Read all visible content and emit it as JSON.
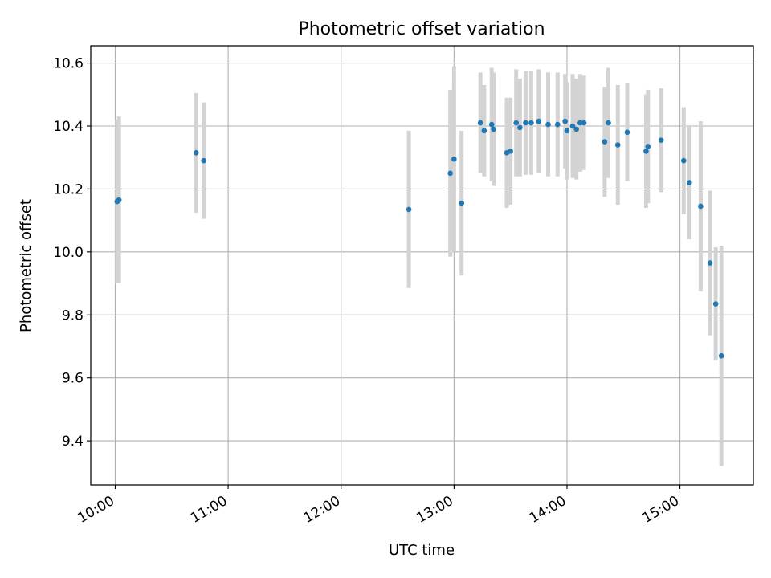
{
  "chart_data": {
    "type": "scatter",
    "title": "Photometric offset variation",
    "xlabel": "UTC time",
    "ylabel": "Photometric offset",
    "xlim": [
      "09:47",
      "15:39"
    ],
    "ylim": [
      9.26,
      10.655
    ],
    "xticks": [
      "10:00",
      "11:00",
      "12:00",
      "13:00",
      "14:00",
      "15:00"
    ],
    "yticks": [
      9.4,
      9.6,
      9.8,
      10.0,
      10.2,
      10.4,
      10.6
    ],
    "ytick_labels": [
      "9.4",
      "9.6",
      "9.8",
      "10.0",
      "10.2",
      "10.4",
      "10.6"
    ],
    "grid": true,
    "colors": {
      "points": "#1f77b4",
      "errorbars": "#d3d3d3",
      "grid": "#b0b0b0"
    },
    "points": [
      {
        "x": "10:01",
        "y": 10.16,
        "err": 0.26
      },
      {
        "x": "10:02",
        "y": 10.165,
        "err": 0.265
      },
      {
        "x": "10:43",
        "y": 10.315,
        "err": 0.19
      },
      {
        "x": "10:47",
        "y": 10.29,
        "err": 0.185
      },
      {
        "x": "12:36",
        "y": 10.135,
        "err": 0.25
      },
      {
        "x": "12:58",
        "y": 10.25,
        "err": 0.265
      },
      {
        "x": "13:00",
        "y": 10.295,
        "err": 0.295
      },
      {
        "x": "13:04",
        "y": 10.155,
        "err": 0.23
      },
      {
        "x": "13:14",
        "y": 10.41,
        "err": 0.16
      },
      {
        "x": "13:16",
        "y": 10.385,
        "err": 0.145
      },
      {
        "x": "13:20",
        "y": 10.405,
        "err": 0.18
      },
      {
        "x": "13:21",
        "y": 10.39,
        "err": 0.18
      },
      {
        "x": "13:28",
        "y": 10.315,
        "err": 0.175
      },
      {
        "x": "13:30",
        "y": 10.32,
        "err": 0.17
      },
      {
        "x": "13:33",
        "y": 10.41,
        "err": 0.17
      },
      {
        "x": "13:35",
        "y": 10.395,
        "err": 0.155
      },
      {
        "x": "13:38",
        "y": 10.41,
        "err": 0.165
      },
      {
        "x": "13:41",
        "y": 10.41,
        "err": 0.165
      },
      {
        "x": "13:45",
        "y": 10.415,
        "err": 0.165
      },
      {
        "x": "13:50",
        "y": 10.405,
        "err": 0.165
      },
      {
        "x": "13:55",
        "y": 10.405,
        "err": 0.165
      },
      {
        "x": "13:59",
        "y": 10.415,
        "err": 0.15
      },
      {
        "x": "14:00",
        "y": 10.385,
        "err": 0.155
      },
      {
        "x": "14:03",
        "y": 10.4,
        "err": 0.165
      },
      {
        "x": "14:05",
        "y": 10.39,
        "err": 0.16
      },
      {
        "x": "14:07",
        "y": 10.41,
        "err": 0.155
      },
      {
        "x": "14:09",
        "y": 10.41,
        "err": 0.15
      },
      {
        "x": "14:20",
        "y": 10.35,
        "err": 0.175
      },
      {
        "x": "14:22",
        "y": 10.41,
        "err": 0.175
      },
      {
        "x": "14:27",
        "y": 10.34,
        "err": 0.19
      },
      {
        "x": "14:32",
        "y": 10.38,
        "err": 0.155
      },
      {
        "x": "14:42",
        "y": 10.32,
        "err": 0.18
      },
      {
        "x": "14:43",
        "y": 10.335,
        "err": 0.18
      },
      {
        "x": "14:50",
        "y": 10.355,
        "err": 0.165
      },
      {
        "x": "15:02",
        "y": 10.29,
        "err": 0.17
      },
      {
        "x": "15:05",
        "y": 10.22,
        "err": 0.18
      },
      {
        "x": "15:11",
        "y": 10.145,
        "err": 0.27
      },
      {
        "x": "15:16",
        "y": 9.965,
        "err": 0.23
      },
      {
        "x": "15:19",
        "y": 9.835,
        "err": 0.18
      },
      {
        "x": "15:22",
        "y": 9.67,
        "err": 0.35
      }
    ]
  }
}
